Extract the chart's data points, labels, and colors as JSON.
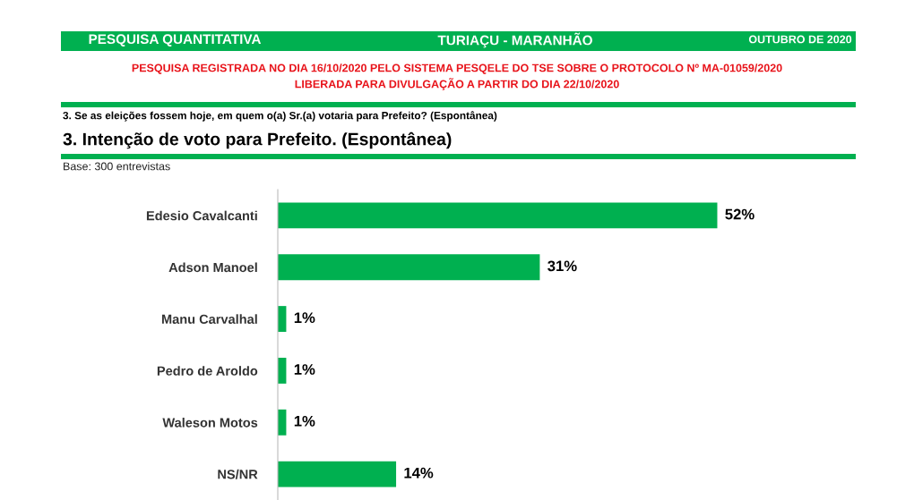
{
  "chart_data": {
    "type": "bar",
    "orientation": "horizontal",
    "title": "3. Intenção de voto para Prefeito. (Espontânea)",
    "subtitle": "3. Se as eleições fossem hoje, em quem o(a) Sr.(a) votaria para Prefeito? (Espontânea)",
    "annotations": [
      "PESQUISA QUANTITATIVA",
      "TURIAÇU - MARANHÃO",
      "OUTUBRO DE 2020",
      "PESQUISA REGISTRADA NO DIA 16/10/2020 PELO SISTEMA PESQELE DO TSE SOBRE O PROTOCOLO Nº MA-01059/2020",
      "LIBERADA PARA DIVULGAÇÃO A PARTIR DO DIA 22/10/2020",
      "Base: 300 entrevistas"
    ],
    "categories": [
      "Edesio Cavalcanti",
      "Adson Manoel",
      "Manu Carvalhal",
      "Pedro de Aroldo",
      "Waleson Motos",
      "NS/NR"
    ],
    "values": [
      52,
      31,
      1,
      1,
      1,
      14
    ],
    "value_labels": [
      "52%",
      "31%",
      "1%",
      "1%",
      "1%",
      "14%"
    ],
    "color": "#00b050",
    "tick_labels": "y",
    "grid": false,
    "legend": false
  }
}
